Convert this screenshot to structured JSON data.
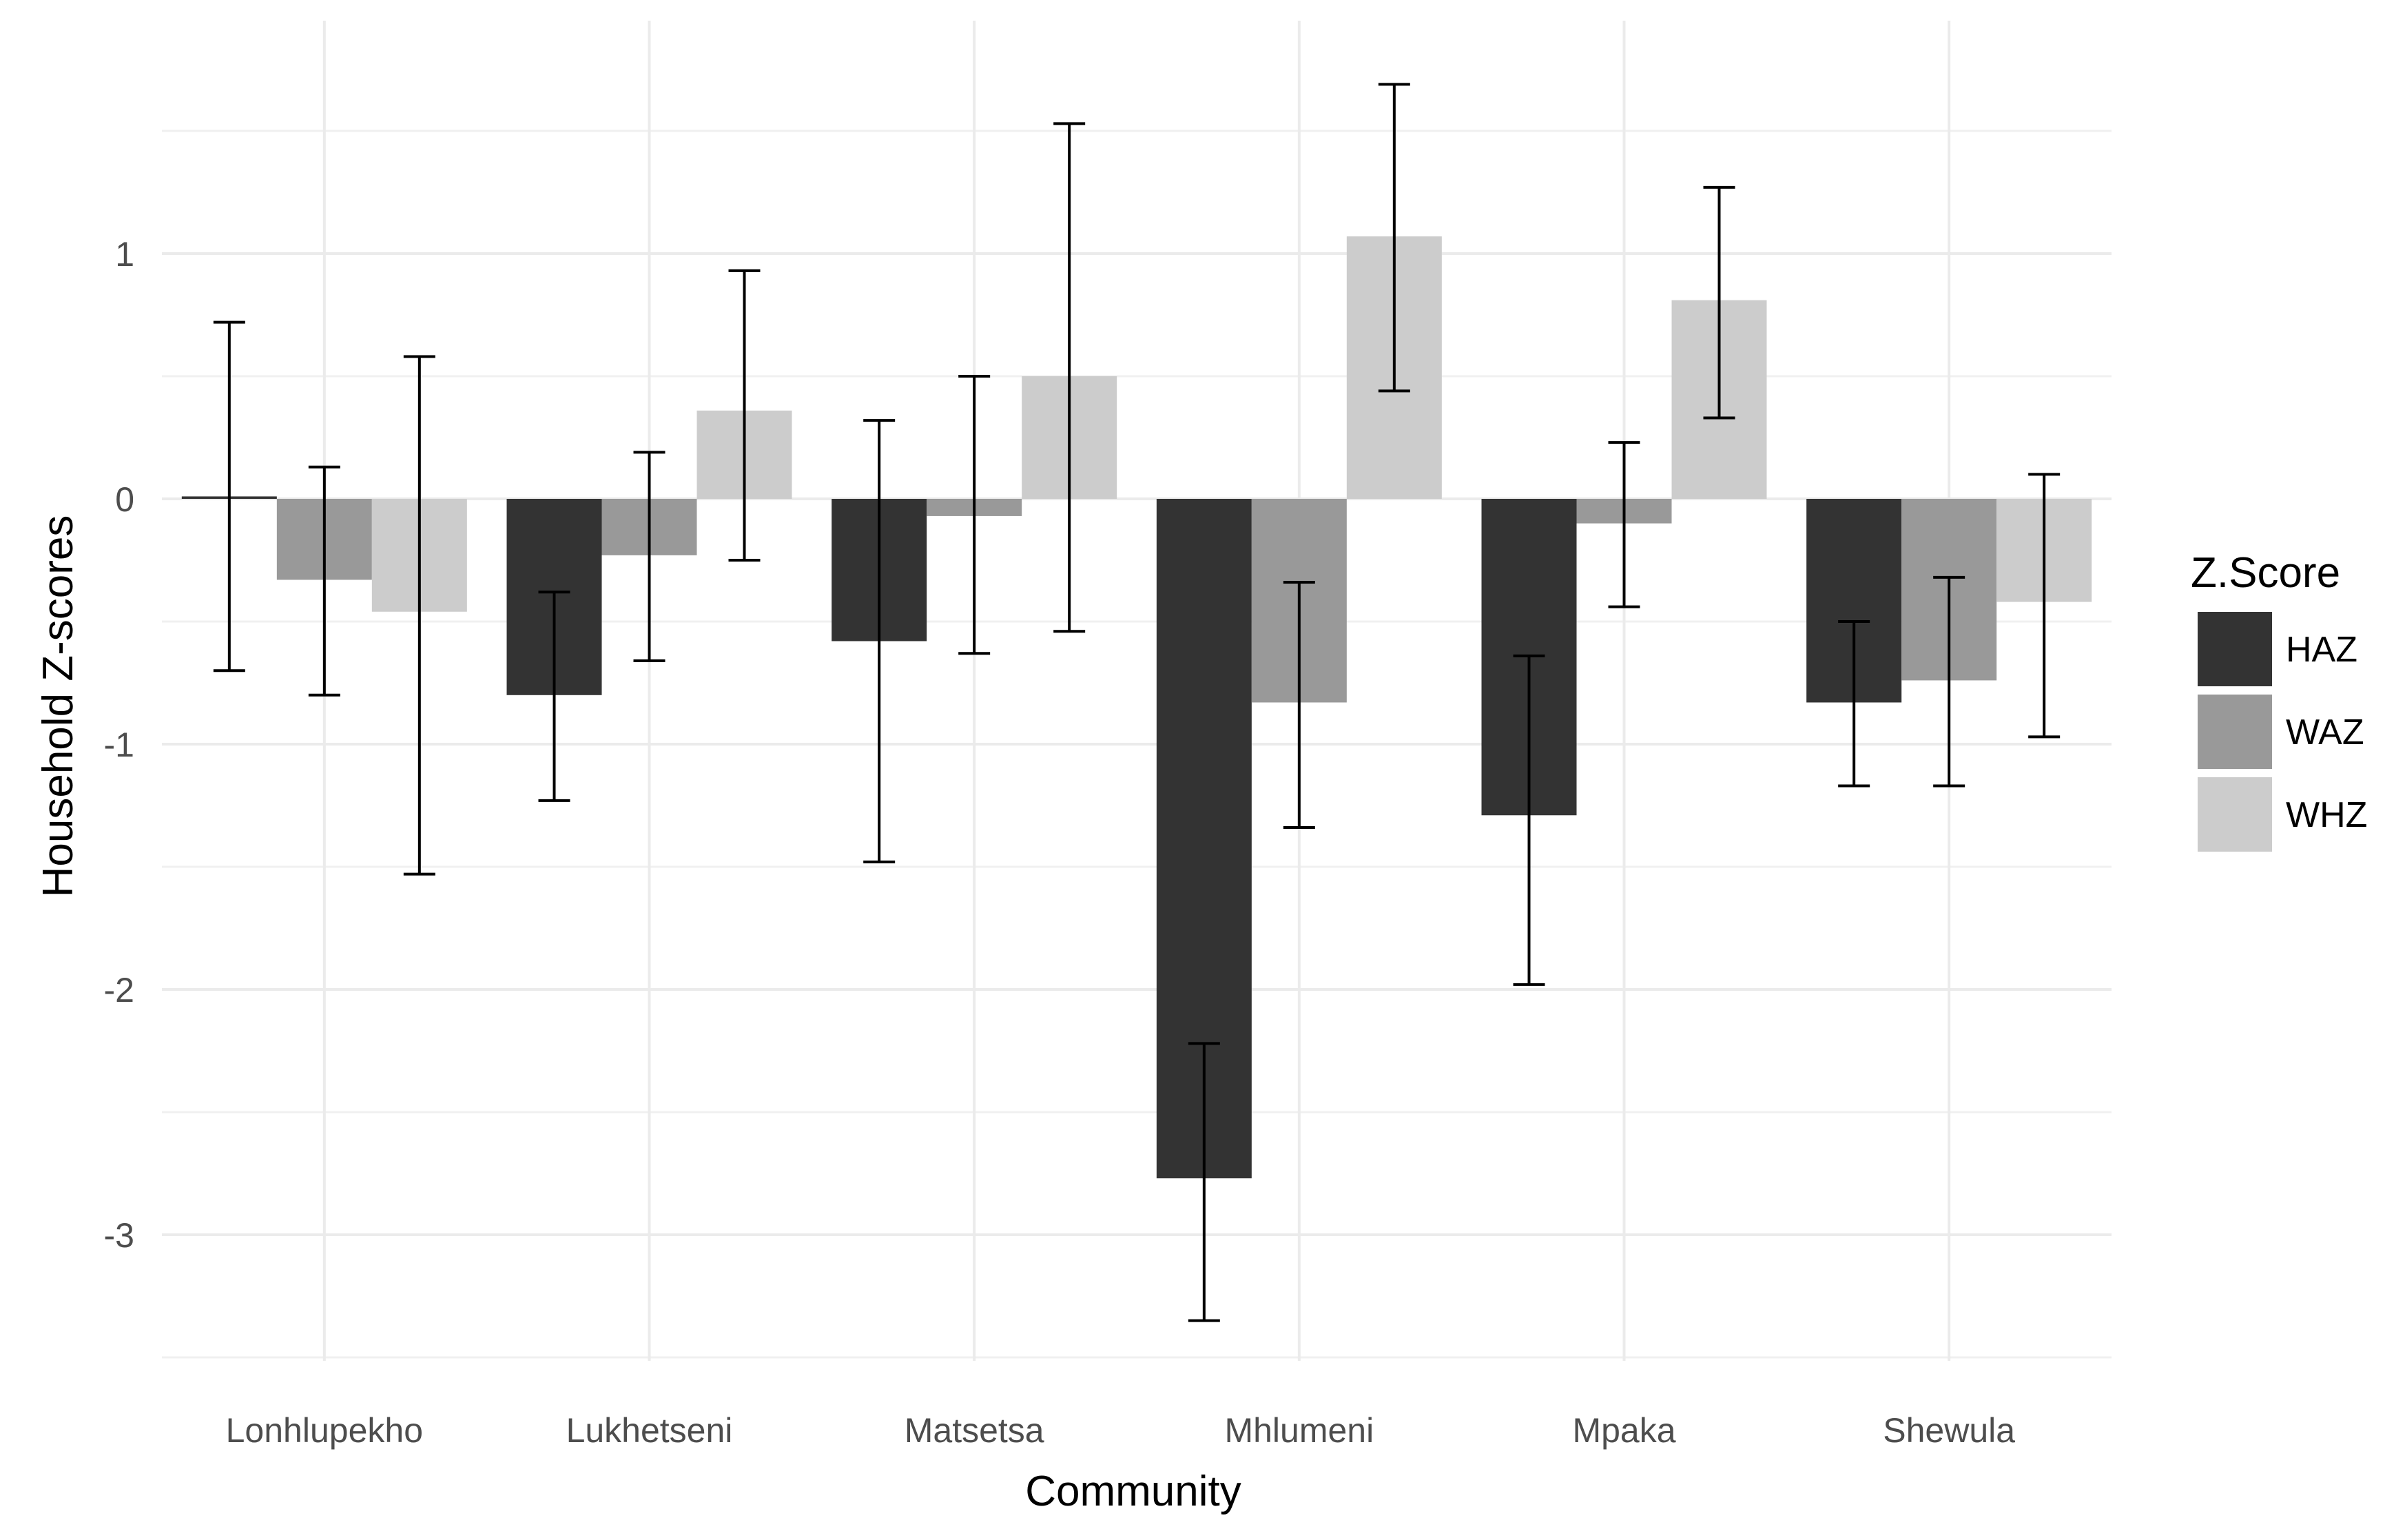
{
  "chart_data": {
    "type": "bar",
    "title": "",
    "xlabel": "Community",
    "ylabel": "Household Z-scores",
    "ylim": [
      -3.5,
      1.95
    ],
    "yticks": [
      -3,
      -2,
      -1,
      0,
      1
    ],
    "grid": true,
    "legend_title": "Z.Score",
    "legend_position": "right",
    "categories": [
      "Lonhlupekho",
      "Lukhetseni",
      "Matsetsa",
      "Mhlumeni",
      "Mpaka",
      "Shewula"
    ],
    "series": [
      {
        "name": "HAZ",
        "color": "#333333",
        "values": [
          0.01,
          -0.8,
          -0.58,
          -2.77,
          -1.29,
          -0.83
        ],
        "err_low": [
          -0.7,
          -1.23,
          -1.48,
          -3.35,
          -1.98,
          -1.17
        ],
        "err_high": [
          0.72,
          -0.38,
          0.32,
          -2.22,
          -0.64,
          -0.5
        ]
      },
      {
        "name": "WAZ",
        "color": "#999999",
        "values": [
          -0.33,
          -0.23,
          -0.07,
          -0.83,
          -0.1,
          -0.74
        ],
        "err_low": [
          -0.8,
          -0.66,
          -0.63,
          -1.34,
          -0.44,
          -1.17
        ],
        "err_high": [
          0.13,
          0.19,
          0.5,
          -0.34,
          0.23,
          -0.32
        ]
      },
      {
        "name": "WHZ",
        "color": "#cccccc",
        "values": [
          -0.46,
          0.36,
          0.5,
          1.07,
          0.81,
          -0.42
        ],
        "err_low": [
          -1.53,
          -0.25,
          -0.54,
          0.44,
          0.33,
          -0.97
        ],
        "err_high": [
          0.58,
          0.93,
          1.53,
          1.69,
          1.27,
          0.1
        ]
      }
    ]
  }
}
